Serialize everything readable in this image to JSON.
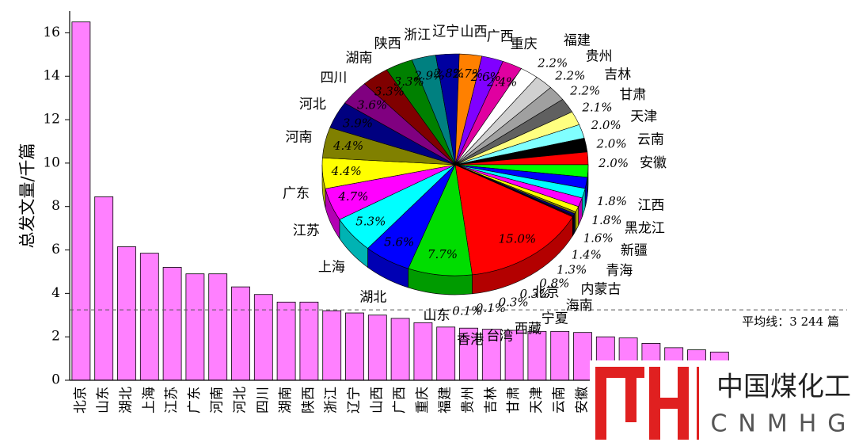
{
  "chart_data": [
    {
      "type": "bar",
      "y_label": "总发文量/千篇",
      "categories": [
        "北京",
        "山东",
        "湖北",
        "上海",
        "江苏",
        "广东",
        "河南",
        "河北",
        "四川",
        "湖南",
        "陕西",
        "浙江",
        "辽宁",
        "山西",
        "广西",
        "重庆",
        "福建",
        "贵州",
        "吉林",
        "甘肃",
        "天津",
        "云南",
        "安徽",
        null,
        null,
        null,
        null,
        null,
        null,
        null
      ],
      "values": [
        16.5,
        8.45,
        6.15,
        5.85,
        5.2,
        4.9,
        4.9,
        4.3,
        3.95,
        3.6,
        3.6,
        3.2,
        3.1,
        3.0,
        2.85,
        2.65,
        2.45,
        2.4,
        2.35,
        2.3,
        2.25,
        2.25,
        2.2,
        2.0,
        1.95,
        1.7,
        1.5,
        1.4,
        1.3,
        0.85
      ],
      "color": "#ff80ff",
      "ylim": [
        0,
        17
      ],
      "yticks": [
        0,
        2,
        4,
        6,
        8,
        10,
        12,
        14,
        16
      ],
      "reference_line": {
        "value": 3.244,
        "label": "平均线：3 244 篇"
      }
    },
    {
      "type": "pie",
      "categories": [
        "北京",
        "山东",
        "湖北",
        "上海",
        "江苏",
        "广东",
        "河南",
        "河北",
        "四川",
        "湖南",
        "陕西",
        "浙江",
        "辽宁",
        "山西",
        "广西",
        "重庆",
        "福建",
        "贵州",
        "吉林",
        "甘肃",
        "天津",
        "云南",
        "安徽",
        "江西",
        "黑龙江",
        "新疆",
        "青海",
        "内蒙古",
        "海南",
        "宁夏",
        "西藏",
        "台湾",
        "香港"
      ],
      "values": [
        15.0,
        7.7,
        5.6,
        5.3,
        4.7,
        4.4,
        4.4,
        3.9,
        3.6,
        3.3,
        3.3,
        2.9,
        2.8,
        2.7,
        2.6,
        2.4,
        2.2,
        2.2,
        2.2,
        2.1,
        2.0,
        2.0,
        2.0,
        1.8,
        1.8,
        1.6,
        1.4,
        1.3,
        0.8,
        0.3,
        0.3,
        0.1,
        0.1
      ],
      "value_labels": [
        "15.0%",
        "7.7%",
        "5.6%",
        "5.3%",
        "4.7%",
        "4.4%",
        "4.4%",
        "3.9%",
        "3.6%",
        "3.3%",
        "3.3%",
        "2.9%",
        "2.8%",
        "2.7%",
        "2.6%",
        "2.4%",
        "2.2%",
        "2.2%",
        "2.2%",
        "2.1%",
        "2.0%",
        "2.0%",
        "2.0%",
        "1.8%",
        "1.8%",
        "1.6%",
        "1.4%",
        "1.3%",
        "0.8%",
        "0.3%",
        "0.3%",
        "0.1%",
        "0.1%"
      ],
      "colors": [
        "#ff0000",
        "#00dd00",
        "#0000ff",
        "#00ffff",
        "#ff00ff",
        "#ffff00",
        "#808000",
        "#000080",
        "#800080",
        "#800000",
        "#008000",
        "#008080",
        "#0000a0",
        "#ff8000",
        "#8000ff",
        "#e000a0",
        "#ffffff",
        "#d0d0d0",
        "#a0a0a0",
        "#606060",
        "#ffff80",
        "#80ffff",
        "#000000",
        "#ff0000",
        "#00ff00",
        "#0000ff",
        "#00ffff",
        "#ff00ff",
        "#ffff00",
        "#808000",
        "#000080",
        "#800080",
        "#800000"
      ]
    }
  ],
  "logo": {
    "title": "中国煤化工",
    "subtitle": "CNMHG"
  }
}
